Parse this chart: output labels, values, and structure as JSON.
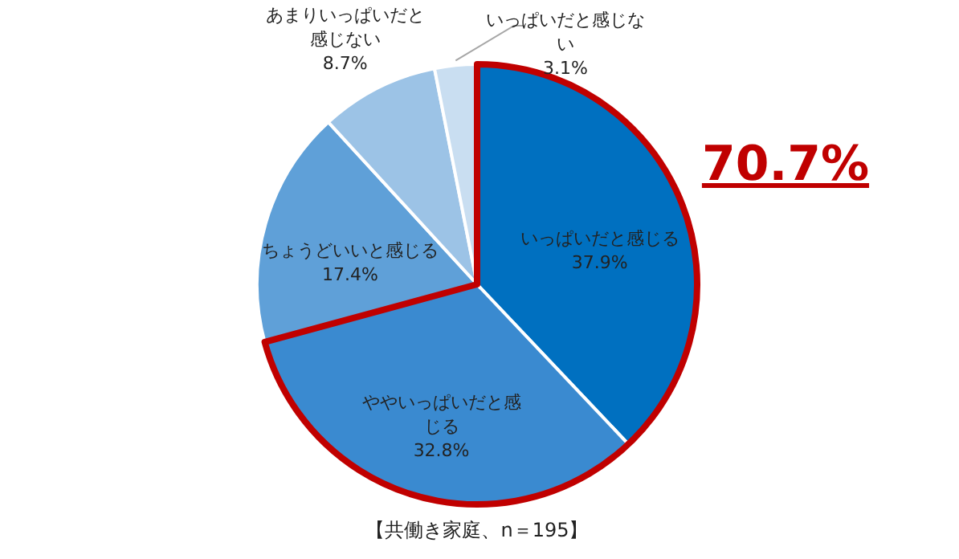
{
  "chart_data": {
    "type": "pie",
    "categories": [
      "いっぱいだと感じる",
      "ややいっぱいだと感じる",
      "ちょうどいいと感じる",
      "あまりいっぱいだと感じない",
      "いっぱいだと感じない"
    ],
    "values": [
      37.9,
      32.8,
      17.4,
      8.7,
      3.1
    ],
    "value_labels": [
      "37.9%",
      "32.8%",
      "17.4%",
      "8.7%",
      "3.1%"
    ],
    "colors": [
      "#0070c0",
      "#3a8ad0",
      "#5fa0d8",
      "#9cc3e6",
      "#c9def1"
    ],
    "annotations": [
      "70.7%",
      "【共働き家庭、n＝195】"
    ]
  }
}
